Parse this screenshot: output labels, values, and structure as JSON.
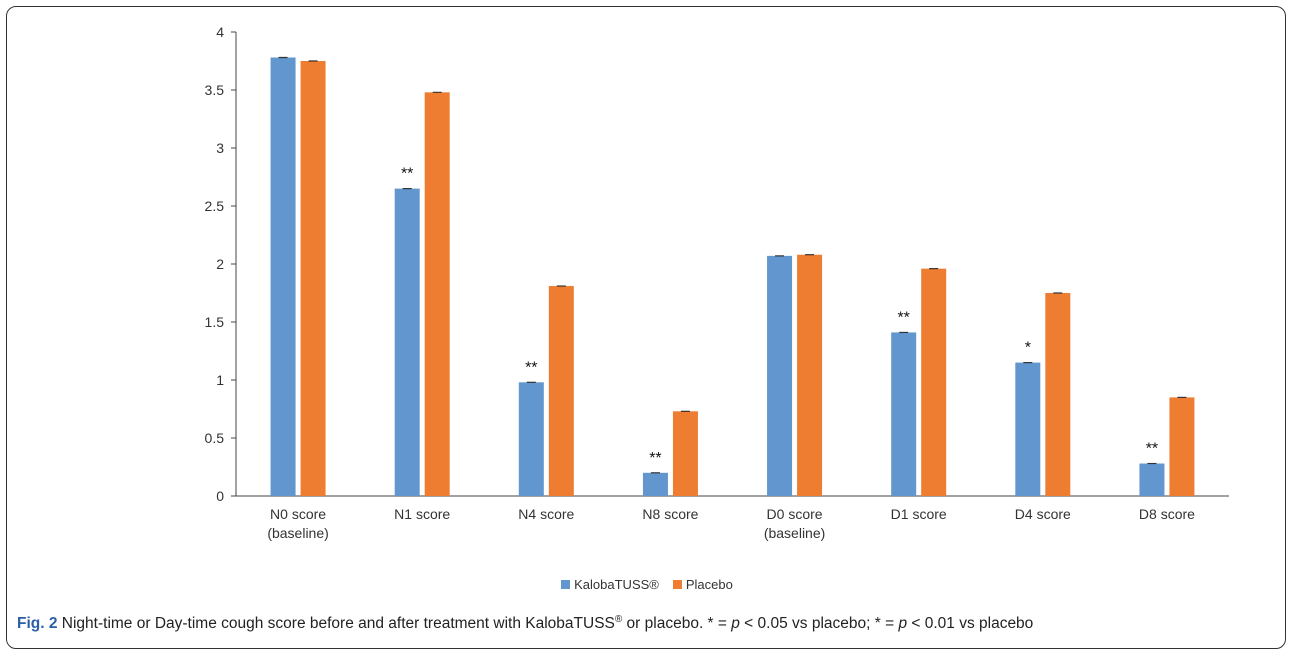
{
  "chart_data": {
    "type": "bar",
    "categories": [
      [
        "N0 score",
        "(baseline)"
      ],
      [
        "N1 score"
      ],
      [
        "N4 score"
      ],
      [
        "N8 score"
      ],
      [
        "D0 score",
        "(baseline)"
      ],
      [
        "D1 score"
      ],
      [
        "D4 score"
      ],
      [
        "D8 score"
      ]
    ],
    "series": [
      {
        "name": "KalobaTUSS®",
        "color": "#6196cf",
        "values": [
          3.78,
          2.65,
          0.98,
          0.2,
          2.07,
          1.41,
          1.15,
          0.28
        ]
      },
      {
        "name": "Placebo",
        "color": "#ee7d31",
        "values": [
          3.75,
          3.48,
          1.81,
          0.73,
          2.08,
          1.96,
          1.75,
          0.85
        ]
      }
    ],
    "significance": [
      "",
      "**",
      "**",
      "**",
      "",
      "**",
      "*",
      "**"
    ],
    "ylim": [
      0,
      4
    ],
    "yticks": [
      "0",
      "0.5",
      "1",
      "1.5",
      "2",
      "2.5",
      "3",
      "3.5",
      "4"
    ],
    "title": "",
    "xlabel": "",
    "ylabel": "",
    "grid": false,
    "legend_position": "bottom"
  },
  "legend": {
    "item1": "KalobaTUSS®",
    "item2": "Placebo"
  },
  "caption": {
    "label": "Fig. 2",
    "text_part1": " Night-time or Day-time cough score before and after treatment with KalobaTUSS",
    "reg": "®",
    "text_part2": " or placebo. * = ",
    "p1": "p",
    "text_part3": " < 0.05 vs placebo; * = ",
    "p2": "p",
    "text_part4": " < 0.01 vs placebo"
  }
}
